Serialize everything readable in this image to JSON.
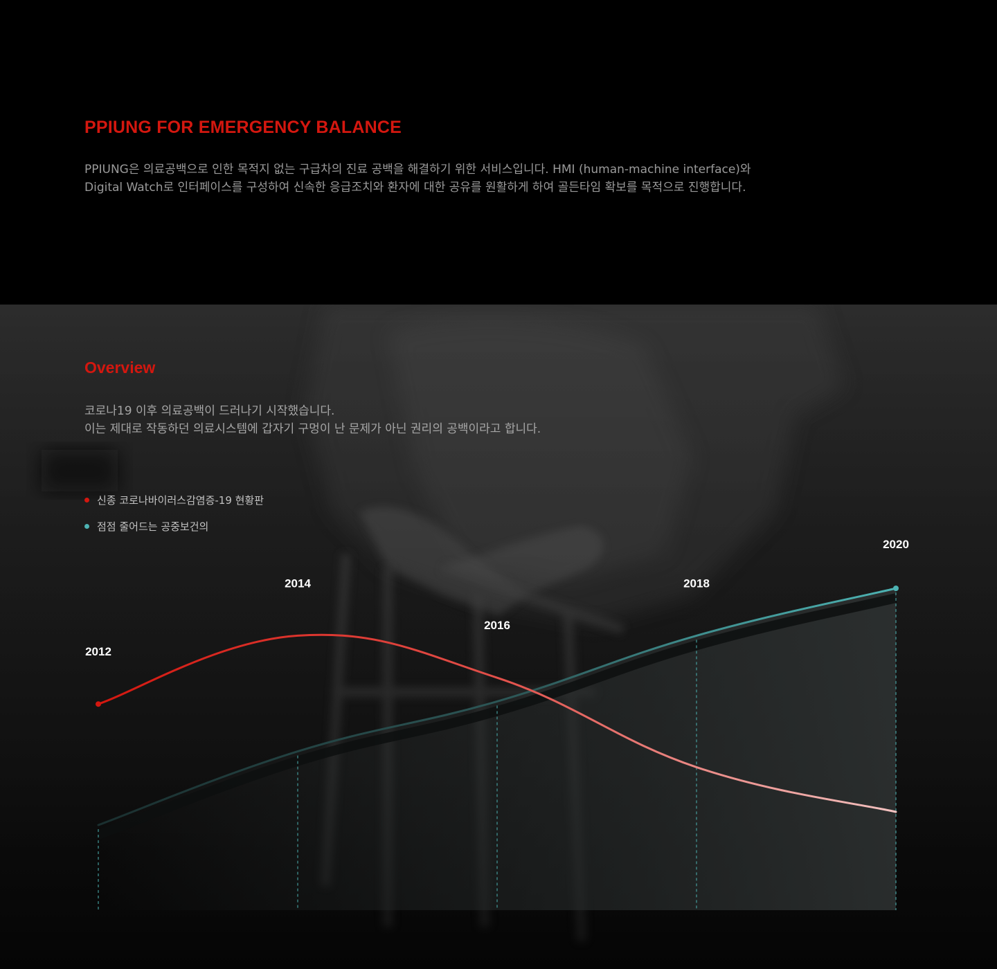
{
  "intro": {
    "title": "PPIUNG FOR EMERGENCY BALANCE",
    "lines": [
      "PPIUNG은 의료공백으로 인한 목적지 없는 구급차의 진료 공백을 해결하기 위한 서비스입니다. HMI (human-machine interface)와",
      "Digital Watch로 인터페이스를 구성하여 신속한 응급조치와 환자에 대한 공유를 원활하게 하여 골든타임 확보를 목적으로 진행합니다."
    ]
  },
  "overview": {
    "title": "Overview",
    "lines": [
      "코로나19 이후 의료공백이 드러나기 시작했습니다.",
      "이는 제대로 작동하던 의료시스템에 갑자기 구멍이 난 문제가 아닌 권리의 공백이라고 합니다."
    ],
    "legend": [
      {
        "label": "신종 코로나바이러스감염증-19 현황판",
        "color": "#d4170f"
      },
      {
        "label": "점점 줄어드는 공중보건의",
        "color": "#4db3b3"
      }
    ]
  },
  "chart_data": {
    "type": "line",
    "categories": [
      "2012",
      "2014",
      "2016",
      "2018",
      "2020"
    ],
    "series": [
      {
        "name": "신종 코로나바이러스감염증-19 현황판",
        "values": [
          0.56,
          0.82,
          0.66,
          0.32,
          0.15
        ],
        "color": "#d4170f"
      },
      {
        "name": "점점 줄어드는 공중보건의",
        "values": [
          0.1,
          0.38,
          0.57,
          0.82,
          1.0
        ],
        "color": "#4db3b3"
      }
    ],
    "title": "",
    "xlabel": "",
    "ylabel": "",
    "ylim": [
      0,
      1
    ],
    "grid": false,
    "legend": "top-left"
  }
}
